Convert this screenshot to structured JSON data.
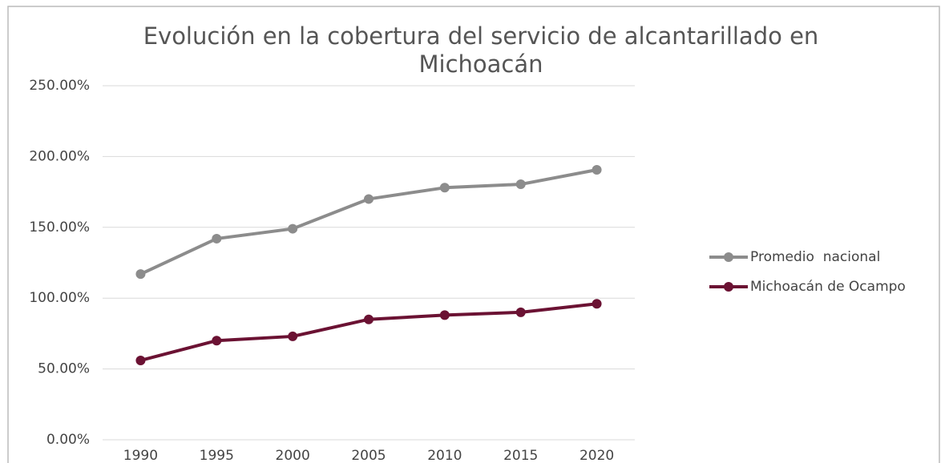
{
  "chart_data": {
    "type": "line",
    "title": "Evolución en la cobertura del servicio de alcantarillado en Michoacán",
    "categories": [
      "1990",
      "1995",
      "2000",
      "2005",
      "2010",
      "2015",
      "2020"
    ],
    "series": [
      {
        "name": "Promedio  nacional",
        "color": "#8c8c8c",
        "values": [
          117,
          142,
          149,
          170,
          178,
          180.4,
          190.6
        ]
      },
      {
        "name": "Michoacán de Ocampo",
        "color": "#6b1233",
        "values": [
          56,
          70,
          73,
          85,
          88,
          90,
          96
        ]
      }
    ],
    "ylim": [
      0,
      250
    ],
    "yticks": [
      {
        "value": 0,
        "label": "0.00%"
      },
      {
        "value": 50,
        "label": "50.00%"
      },
      {
        "value": 100,
        "label": "100.00%"
      },
      {
        "value": 150,
        "label": "150.00%"
      },
      {
        "value": 200,
        "label": "200.00%"
      },
      {
        "value": 250,
        "label": "250.00%"
      }
    ],
    "grid": true,
    "legend": "right"
  }
}
